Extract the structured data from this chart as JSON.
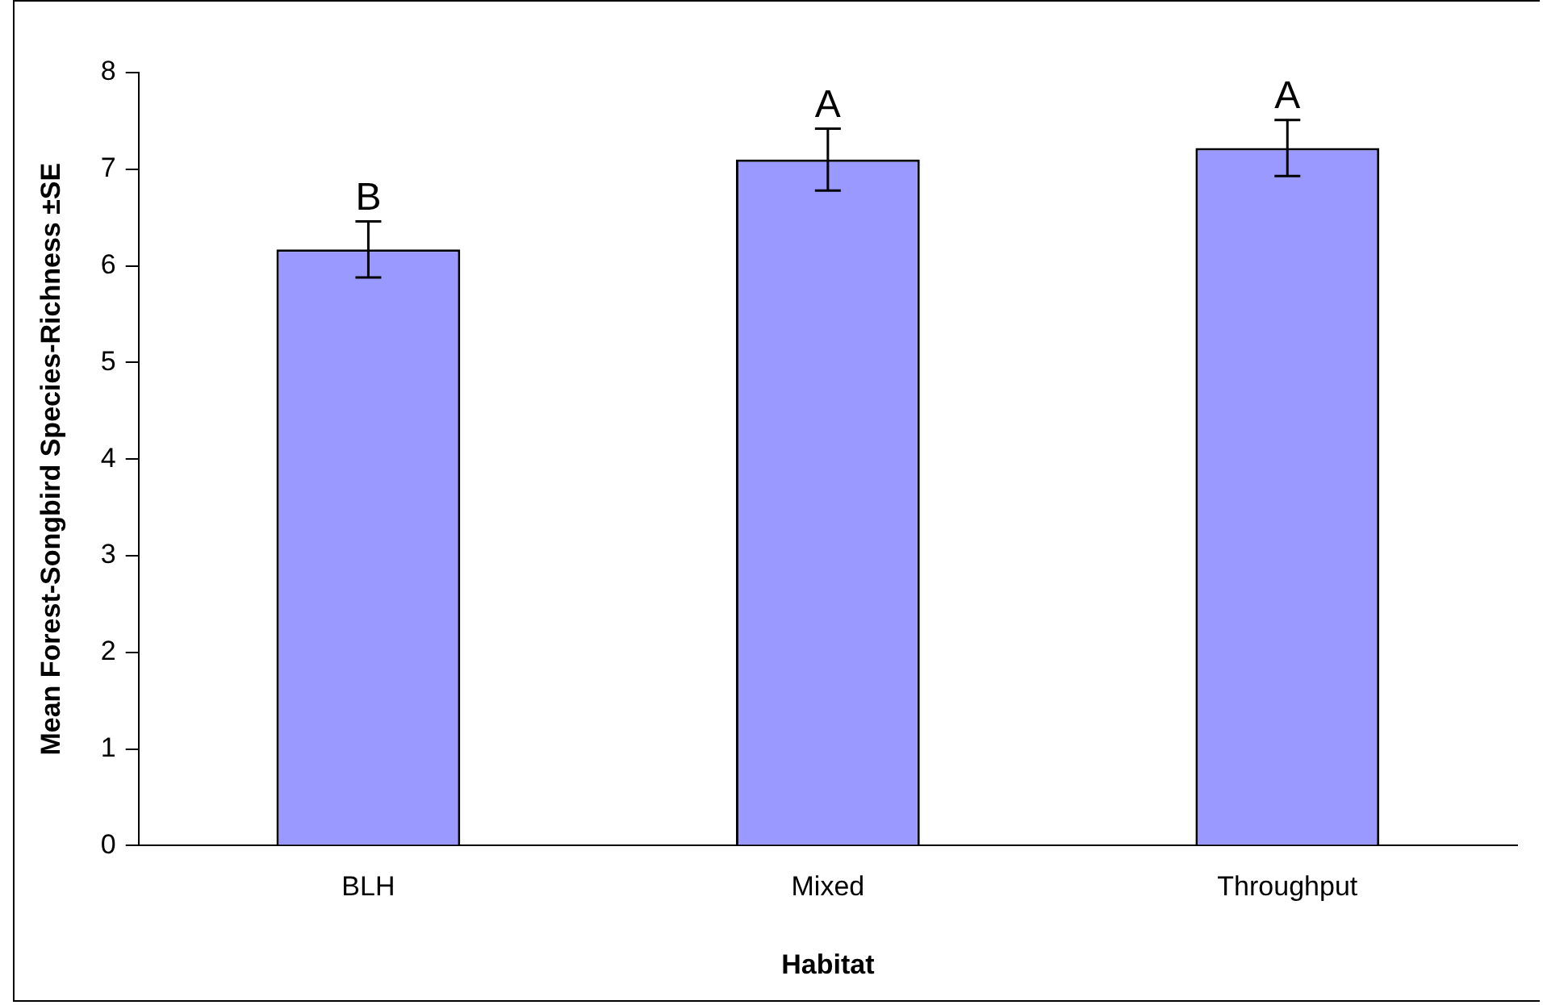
{
  "chart_data": {
    "type": "bar",
    "xlabel": "Habitat",
    "ylabel": "Mean Forest-Songbird Species-Richness ±SE",
    "categories": [
      "BLH",
      "Mixed",
      "Throughput"
    ],
    "values": [
      6.17,
      7.1,
      7.22
    ],
    "errors": [
      0.29,
      0.32,
      0.29
    ],
    "color": "#9999ff",
    "ylim": [
      0,
      8
    ],
    "yticks": [
      0,
      1,
      2,
      3,
      4,
      5,
      6,
      7,
      8
    ],
    "grid": false,
    "legend": false,
    "annotations": [
      {
        "text": "B",
        "x": "BLH",
        "y": 6.46
      },
      {
        "text": "A",
        "x": "Mixed",
        "y": 7.42
      },
      {
        "text": "A",
        "x": "Throughput",
        "y": 7.51
      }
    ]
  }
}
